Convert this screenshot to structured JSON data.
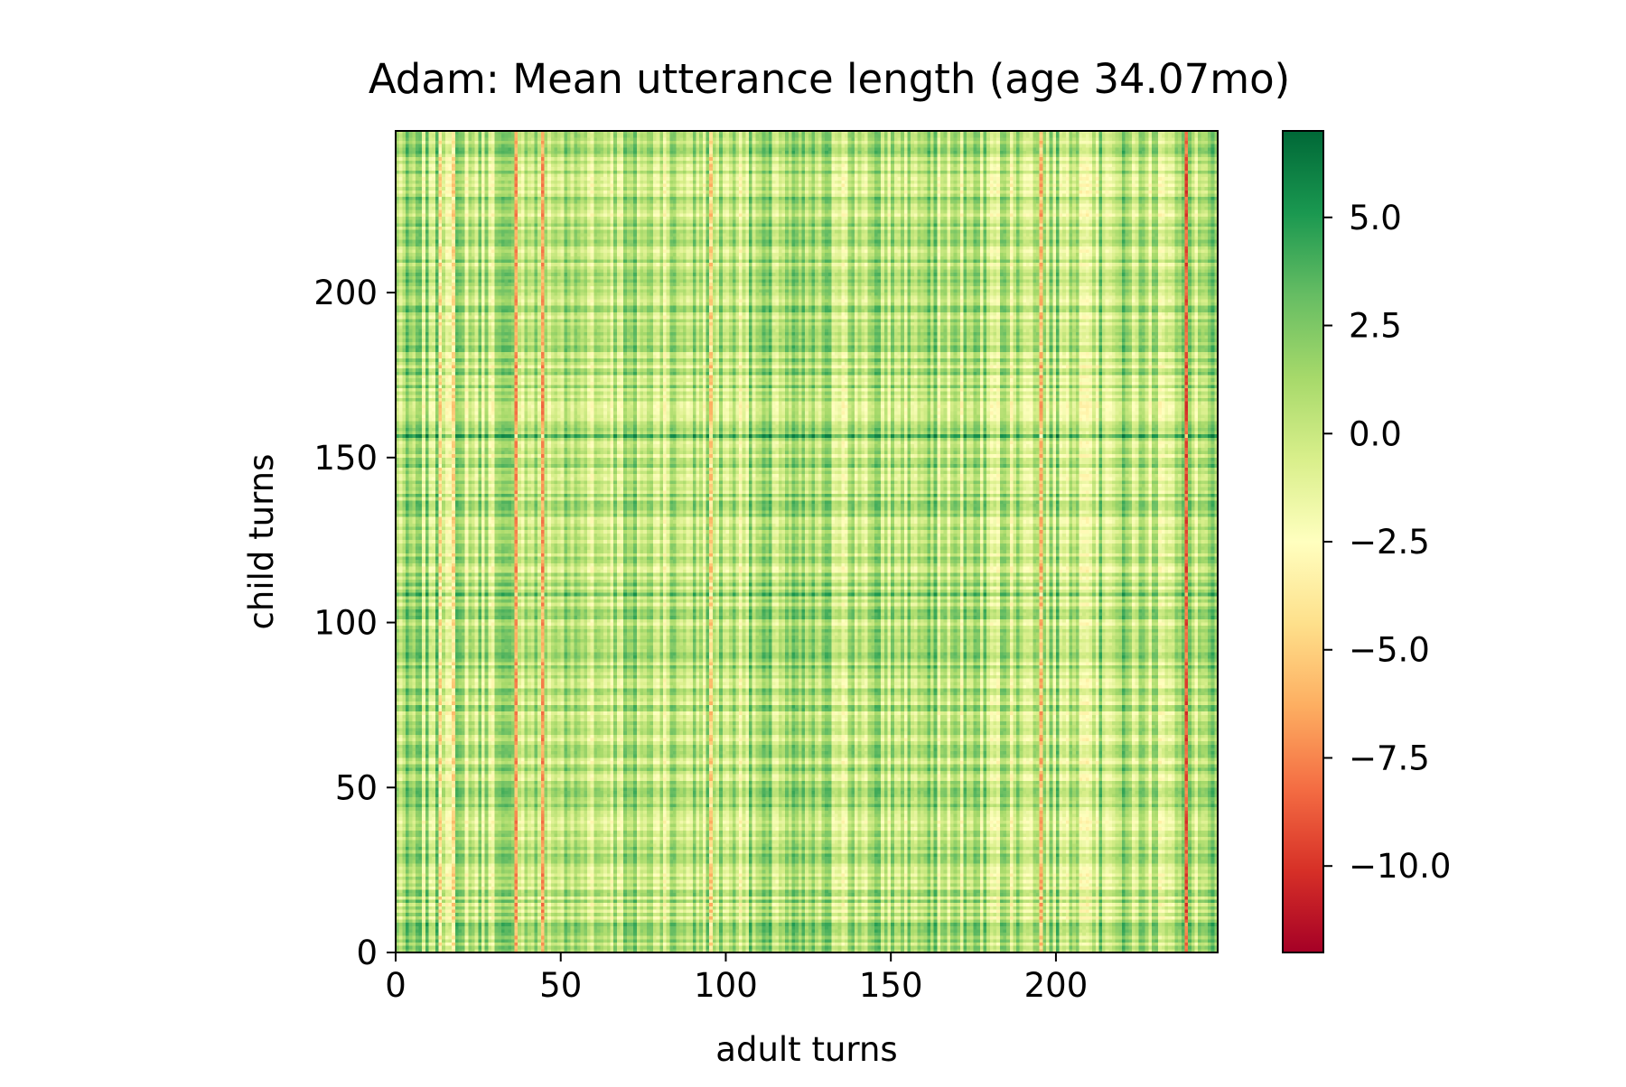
{
  "chart_data": {
    "type": "heatmap",
    "title": "Adam: Mean utterance length (age 34.07mo)",
    "xlabel": "adult turns",
    "ylabel": "child turns",
    "x_count": 249,
    "y_count": 249,
    "xlim": [
      0,
      249
    ],
    "ylim": [
      0,
      249
    ],
    "x_ticks": [
      0,
      50,
      100,
      150,
      200
    ],
    "y_ticks": [
      0,
      50,
      100,
      150,
      200
    ],
    "x_tick_labels": [
      "0",
      "50",
      "100",
      "150",
      "200"
    ],
    "y_tick_labels": [
      "0",
      "50",
      "100",
      "150",
      "200"
    ],
    "value_range": [
      -12,
      7
    ],
    "colormap": "RdYlGn",
    "colormap_stops": [
      "#a50026",
      "#d73027",
      "#f46d43",
      "#fdae61",
      "#fee08b",
      "#ffffbf",
      "#d9ef8b",
      "#a6d96a",
      "#66bd63",
      "#1a9850",
      "#006837"
    ],
    "colorbar_ticks": [
      5.0,
      2.5,
      0.0,
      -2.5,
      -5.0,
      -7.5,
      -10.0
    ],
    "colorbar_tick_labels": [
      "5.0",
      "2.5",
      "0.0",
      "−2.5",
      "−5.0",
      "−7.5",
      "−10.0"
    ],
    "column_effect_anchors": [
      {
        "index": 13,
        "value": -4.5
      },
      {
        "index": 17,
        "value": -4.5
      },
      {
        "index": 36,
        "value": -7.0
      },
      {
        "index": 44,
        "value": -7.0
      },
      {
        "index": 95,
        "value": -5.0
      },
      {
        "index": 195,
        "value": -6.0
      },
      {
        "index": 239,
        "value": -9.0
      }
    ],
    "row_effect_anchors": [
      {
        "index": 156,
        "value": 3.5
      },
      {
        "index": 108,
        "value": 2.5
      },
      {
        "index": 8,
        "value": 2.0
      }
    ]
  }
}
